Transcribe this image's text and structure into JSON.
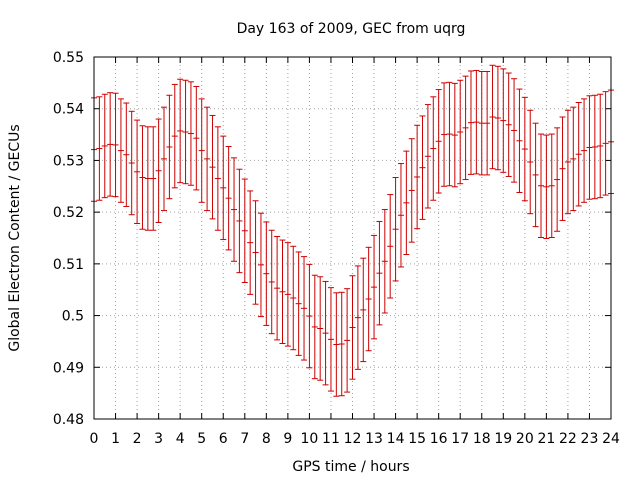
{
  "chart_data": {
    "type": "scatter",
    "title": "Day 163 of 2009, GEC from uqrg",
    "xlabel": "GPS time / hours",
    "ylabel": "Global Electron Content / GECUs",
    "xlim": [
      0,
      24
    ],
    "ylim": [
      0.48,
      0.55
    ],
    "x_ticks": [
      0,
      1,
      2,
      3,
      4,
      5,
      6,
      7,
      8,
      9,
      10,
      11,
      12,
      13,
      14,
      15,
      16,
      17,
      18,
      19,
      20,
      21,
      22,
      23,
      24
    ],
    "y_ticks": [
      0.48,
      0.49,
      0.5,
      0.51,
      0.52,
      0.53,
      0.54,
      0.55
    ],
    "y_tick_labels": [
      "0.48",
      "0.49",
      "0.5",
      "0.51",
      "0.52",
      "0.53",
      "0.54",
      "0.55"
    ],
    "grid": true,
    "series": [
      {
        "name": "GEC",
        "style": "errorbars",
        "color": "#cc0000",
        "error": 0.01,
        "x": [
          0,
          0.25,
          0.5,
          0.75,
          1,
          1.25,
          1.5,
          1.75,
          2,
          2.25,
          2.5,
          2.75,
          3,
          3.25,
          3.5,
          3.75,
          4,
          4.25,
          4.5,
          4.75,
          5,
          5.25,
          5.5,
          5.75,
          6,
          6.25,
          6.5,
          6.75,
          7,
          7.25,
          7.5,
          7.75,
          8,
          8.25,
          8.5,
          8.75,
          9,
          9.25,
          9.5,
          9.75,
          10,
          10.25,
          10.5,
          10.75,
          11,
          11.25,
          11.5,
          11.75,
          12,
          12.25,
          12.5,
          12.75,
          13,
          13.25,
          13.5,
          13.75,
          14,
          14.25,
          14.5,
          14.75,
          15,
          15.25,
          15.5,
          15.75,
          16,
          16.25,
          16.5,
          16.75,
          17,
          17.25,
          17.5,
          17.75,
          18,
          18.25,
          18.5,
          18.75,
          19,
          19.25,
          19.5,
          19.75,
          20,
          20.25,
          20.5,
          20.75,
          21,
          21.25,
          21.5,
          21.75,
          22,
          22.25,
          22.5,
          22.75,
          23,
          23.25,
          23.5,
          23.75,
          24
        ],
        "y": [
          0.5321,
          0.5323,
          0.5328,
          0.5331,
          0.533,
          0.5319,
          0.5311,
          0.5295,
          0.5278,
          0.5267,
          0.5265,
          0.5265,
          0.528,
          0.5303,
          0.5326,
          0.5347,
          0.5357,
          0.5355,
          0.5352,
          0.5343,
          0.5319,
          0.5303,
          0.5287,
          0.5265,
          0.5247,
          0.5227,
          0.5205,
          0.5183,
          0.5164,
          0.5141,
          0.5122,
          0.5098,
          0.5081,
          0.5065,
          0.5053,
          0.5046,
          0.5041,
          0.5034,
          0.5023,
          0.5014,
          0.4999,
          0.4978,
          0.4975,
          0.4966,
          0.4954,
          0.4944,
          0.4945,
          0.4952,
          0.4977,
          0.4996,
          0.5011,
          0.5032,
          0.5055,
          0.5082,
          0.5105,
          0.5134,
          0.5167,
          0.5194,
          0.5218,
          0.5242,
          0.5268,
          0.5286,
          0.5308,
          0.5323,
          0.5337,
          0.535,
          0.5351,
          0.5349,
          0.5355,
          0.5363,
          0.5373,
          0.5374,
          0.5372,
          0.5372,
          0.5384,
          0.5382,
          0.5377,
          0.5369,
          0.5358,
          0.5338,
          0.5322,
          0.5297,
          0.5272,
          0.5251,
          0.5249,
          0.5251,
          0.5263,
          0.5284,
          0.5297,
          0.5303,
          0.5312,
          0.5319,
          0.5325,
          0.5326,
          0.5328,
          0.5333,
          0.5336
        ]
      }
    ]
  }
}
